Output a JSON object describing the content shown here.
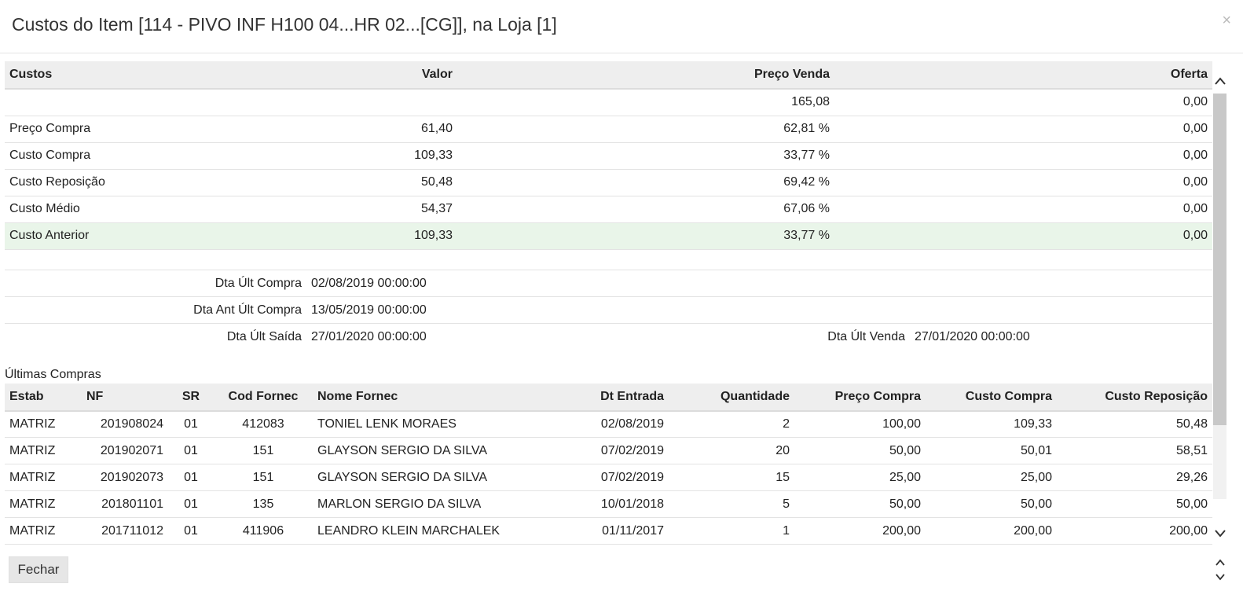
{
  "modal": {
    "title": "Custos do Item [114 - PIVO INF H100 04...HR 02...[CG]], na Loja [1]",
    "close_symbol": "×"
  },
  "costs_table": {
    "headers": [
      "Custos",
      "Valor",
      "Preço Venda",
      "Oferta"
    ],
    "rows": [
      {
        "label": "",
        "valor": "",
        "preco_venda": "165,08",
        "oferta": "0,00"
      },
      {
        "label": "Preço Compra",
        "valor": "61,40",
        "preco_venda": "62,81 %",
        "oferta": "0,00"
      },
      {
        "label": "Custo Compra",
        "valor": "109,33",
        "preco_venda": "33,77 %",
        "oferta": "0,00"
      },
      {
        "label": "Custo Reposição",
        "valor": "50,48",
        "preco_venda": "69,42 %",
        "oferta": "0,00"
      },
      {
        "label": "Custo Médio",
        "valor": "54,37",
        "preco_venda": "67,06 %",
        "oferta": "0,00"
      },
      {
        "label": "Custo Anterior",
        "valor": "109,33",
        "preco_venda": "33,77 %",
        "oferta": "0,00"
      }
    ]
  },
  "dates": {
    "ult_compra_label": "Dta Últ Compra",
    "ult_compra_value": "02/08/2019 00:00:00",
    "ant_ult_compra_label": "Dta Ant Últ Compra",
    "ant_ult_compra_value": "13/05/2019 00:00:00",
    "ult_saida_label": "Dta Últ Saída",
    "ult_saida_value": "27/01/2020 00:00:00",
    "ult_venda_label": "Dta Últ Venda",
    "ult_venda_value": "27/01/2020 00:00:00"
  },
  "purchases": {
    "title": "Últimas Compras",
    "headers": [
      "Estab",
      "NF",
      "SR",
      "Cod Fornec",
      "Nome Fornec",
      "Dt Entrada",
      "Quantidade",
      "Preço Compra",
      "Custo Compra",
      "Custo Reposição"
    ],
    "rows": [
      [
        "MATRIZ",
        "201908024",
        "01",
        "412083",
        "TONIEL LENK MORAES",
        "02/08/2019",
        "2",
        "100,00",
        "109,33",
        "50,48"
      ],
      [
        "MATRIZ",
        "201902071",
        "01",
        "151",
        "GLAYSON SERGIO DA SILVA",
        "07/02/2019",
        "20",
        "50,00",
        "50,01",
        "58,51"
      ],
      [
        "MATRIZ",
        "201902073",
        "01",
        "151",
        "GLAYSON SERGIO DA SILVA",
        "07/02/2019",
        "15",
        "25,00",
        "25,00",
        "29,26"
      ],
      [
        "MATRIZ",
        "201801101",
        "01",
        "135",
        "MARLON SERGIO DA SILVA",
        "10/01/2018",
        "5",
        "50,00",
        "50,00",
        "50,00"
      ],
      [
        "MATRIZ",
        "201711012",
        "01",
        "411906",
        "LEANDRO KLEIN MARCHALEK",
        "01/11/2017",
        "1",
        "200,00",
        "200,00",
        "200,00"
      ]
    ]
  },
  "footer": {
    "close_label": "Fechar"
  },
  "icons": {
    "scroll_up": "scroll-up-icon",
    "scroll_down": "scroll-down-icon"
  }
}
